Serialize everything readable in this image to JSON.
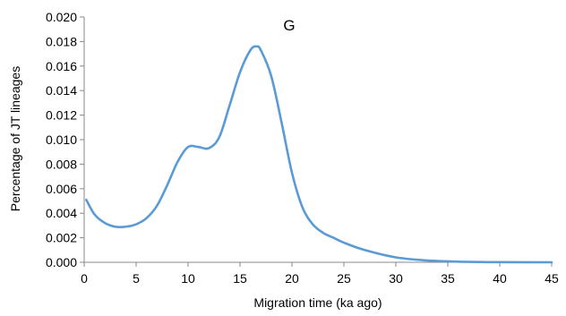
{
  "chart_data": {
    "type": "line",
    "title": "G",
    "xlabel": "Migration time (ka ago)",
    "ylabel": "Percentage of JT lineages",
    "xlim": [
      0,
      45
    ],
    "ylim": [
      0,
      0.02
    ],
    "grid": false,
    "legend": "none",
    "x_ticks": [
      "0",
      "5",
      "10",
      "15",
      "20",
      "25",
      "30",
      "35",
      "40",
      "45"
    ],
    "y_ticks": [
      "0.000",
      "0.002",
      "0.004",
      "0.006",
      "0.008",
      "0.010",
      "0.012",
      "0.014",
      "0.016",
      "0.018",
      "0.020"
    ],
    "colors": {
      "line": "#5b9bd5",
      "axis": "#888888"
    },
    "series": [
      {
        "x": [
          0.2,
          1,
          2,
          3,
          4,
          5,
          6,
          7,
          8,
          9,
          10,
          11,
          12,
          13,
          14,
          15,
          16,
          16.6,
          17,
          18,
          19,
          20,
          21,
          22,
          23,
          24,
          25,
          27,
          30,
          33,
          36,
          40,
          45
        ],
        "y": [
          0.0051,
          0.0039,
          0.0032,
          0.0029,
          0.0029,
          0.0031,
          0.0036,
          0.0046,
          0.0063,
          0.0082,
          0.0094,
          0.0094,
          0.0093,
          0.0102,
          0.0128,
          0.0155,
          0.0173,
          0.0176,
          0.0173,
          0.0152,
          0.0114,
          0.0073,
          0.0045,
          0.0031,
          0.0024,
          0.002,
          0.0016,
          0.001,
          0.0004,
          0.00015,
          5e-05,
          1e-05,
          0.0
        ]
      }
    ]
  }
}
